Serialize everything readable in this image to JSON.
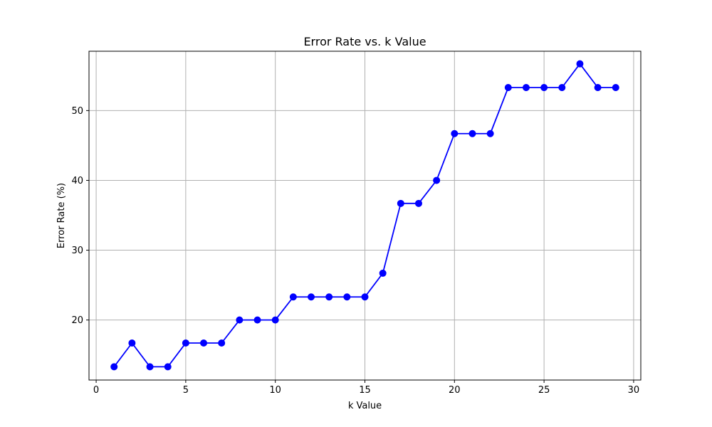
{
  "chart_data": {
    "type": "line",
    "title": "Error Rate vs. k Value",
    "xlabel": "k Value",
    "ylabel": "Error Rate (%)",
    "xlim": [
      -0.4,
      30.4
    ],
    "ylim": [
      11.4,
      58.5
    ],
    "xticks": [
      0,
      5,
      10,
      15,
      20,
      25,
      30
    ],
    "yticks": [
      20,
      30,
      40,
      50
    ],
    "grid": true,
    "series": [
      {
        "color": "#0000ff",
        "marker": "circle",
        "x": [
          1,
          2,
          3,
          4,
          5,
          6,
          7,
          8,
          9,
          10,
          11,
          12,
          13,
          14,
          15,
          16,
          17,
          18,
          19,
          20,
          21,
          22,
          23,
          24,
          25,
          26,
          27,
          28,
          29
        ],
        "y": [
          13.3,
          16.7,
          13.3,
          13.3,
          16.7,
          16.7,
          16.7,
          20.0,
          20.0,
          20.0,
          23.3,
          23.3,
          23.3,
          23.3,
          23.3,
          26.7,
          36.7,
          36.7,
          40.0,
          46.7,
          46.7,
          46.7,
          53.3,
          53.3,
          53.3,
          53.3,
          56.7,
          53.3,
          53.3
        ]
      }
    ]
  }
}
